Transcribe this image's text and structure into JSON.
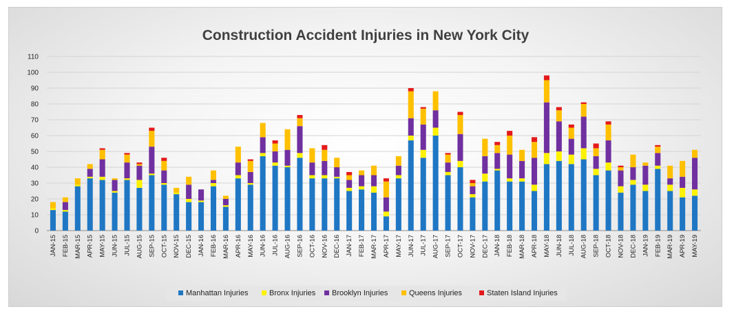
{
  "chart_data": {
    "type": "bar",
    "stacked": true,
    "title": "Construction Accident Injuries in New York City",
    "ylim": [
      0,
      110
    ],
    "yticks": [
      0,
      10,
      20,
      30,
      40,
      50,
      60,
      70,
      80,
      90,
      100,
      110
    ],
    "grid": true,
    "legend_position": "bottom",
    "categories": [
      "JAN-15",
      "FEB-15",
      "MAR-15",
      "APR-15",
      "MAY-15",
      "JUN-15",
      "JUL-15",
      "AUG-15",
      "SEP-15",
      "OCT-15",
      "NOV-15",
      "DEC-15",
      "JAN-16",
      "FEB-16",
      "MAR-16",
      "APR-16",
      "MAY-16",
      "JUN-16",
      "JUL-16",
      "AUG-16",
      "SEP-16",
      "OCT-16",
      "NOV-16",
      "DEC-16",
      "JAN-17",
      "FEB-17",
      "MAR-17",
      "APR-17",
      "MAY-17",
      "JUN-17",
      "JUL-17",
      "AUG-17",
      "SEP-17",
      "OCT-17",
      "NOV-17",
      "DEC-17",
      "JAN-18",
      "FEB-18",
      "MAR-18",
      "APR-18",
      "MAY-18",
      "JUN-18",
      "JUL-18",
      "AUG-18",
      "SEP-18",
      "OCT-18",
      "NOV-18",
      "DEC-18",
      "JAN-19",
      "FEB-19",
      "MAR-19",
      "APR-19",
      "MAY-19"
    ],
    "series": [
      {
        "name": "Manhattan Injuries",
        "color": "#1F77C4",
        "values": [
          13,
          12,
          28,
          33,
          32,
          24,
          32,
          27,
          35,
          29,
          23,
          18,
          18,
          28,
          15,
          33,
          29,
          47,
          41,
          40,
          46,
          33,
          33,
          33,
          25,
          26,
          24,
          9,
          33,
          57,
          46,
          60,
          35,
          40,
          21,
          31,
          38,
          31,
          31,
          25,
          42,
          44,
          42,
          45,
          35,
          38,
          24,
          29,
          25,
          39,
          25,
          21,
          22
        ]
      },
      {
        "name": "Bronx Injuries",
        "color": "#FFF200",
        "values": [
          1,
          1,
          1,
          1,
          2,
          1,
          1,
          5,
          1,
          1,
          1,
          2,
          1,
          2,
          1,
          2,
          1,
          2,
          2,
          1,
          3,
          2,
          2,
          1,
          2,
          2,
          4,
          3,
          2,
          3,
          5,
          5,
          2,
          4,
          2,
          5,
          1,
          2,
          2,
          4,
          7,
          6,
          6,
          7,
          4,
          5,
          4,
          3,
          4,
          2,
          4,
          6,
          4
        ]
      },
      {
        "name": "Brooklyn Injuries",
        "color": "#7030A0",
        "values": [
          0,
          5,
          0,
          5,
          11,
          7,
          10,
          9,
          17,
          8,
          0,
          9,
          7,
          2,
          4,
          8,
          7,
          10,
          7,
          10,
          17,
          8,
          9,
          6,
          5,
          7,
          7,
          9,
          6,
          11,
          16,
          11,
          6,
          17,
          5,
          11,
          10,
          15,
          11,
          17,
          32,
          19,
          10,
          20,
          8,
          14,
          10,
          8,
          12,
          8,
          4,
          7,
          20
        ]
      },
      {
        "name": "Queens Injuries",
        "color": "#FFC000",
        "values": [
          4,
          3,
          4,
          3,
          6,
          1,
          5,
          1,
          10,
          6,
          3,
          5,
          0,
          6,
          2,
          10,
          7,
          9,
          5,
          13,
          5,
          9,
          7,
          6,
          3,
          3,
          6,
          10,
          6,
          17,
          10,
          12,
          5,
          12,
          2,
          11,
          5,
          12,
          7,
          10,
          14,
          7,
          7,
          8,
          5,
          10,
          2,
          8,
          2,
          4,
          8,
          10,
          5
        ]
      },
      {
        "name": "Staten Island Injuries",
        "color": "#E31A1C",
        "values": [
          0,
          0,
          0,
          0,
          1,
          0,
          1,
          1,
          2,
          2,
          0,
          0,
          0,
          0,
          0,
          0,
          1,
          0,
          2,
          0,
          2,
          0,
          3,
          0,
          2,
          0,
          0,
          2,
          0,
          2,
          1,
          0,
          1,
          2,
          2,
          0,
          2,
          3,
          0,
          3,
          3,
          2,
          2,
          1,
          3,
          2,
          1,
          0,
          0,
          1,
          0,
          0,
          0
        ]
      }
    ]
  }
}
